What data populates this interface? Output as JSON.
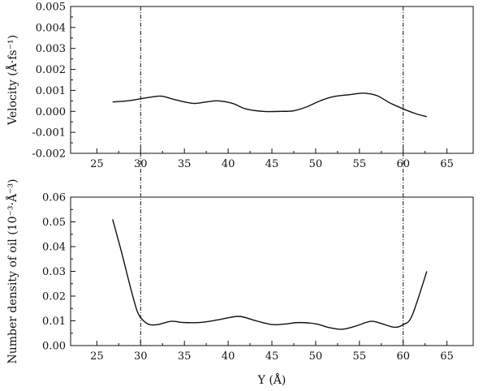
{
  "chart_data": [
    {
      "type": "line",
      "title": "",
      "xlabel": "",
      "ylabel": "Velocity (Å·fs⁻¹)",
      "xlim": [
        22,
        68
      ],
      "ylim": [
        -0.002,
        0.005
      ],
      "xticks": [
        25,
        30,
        35,
        40,
        45,
        50,
        55,
        60,
        65
      ],
      "xtick_labels": [
        "25",
        "30",
        "35",
        "40",
        "45",
        "50",
        "55",
        "60",
        "65"
      ],
      "yticks": [
        -0.002,
        -0.001,
        0.0,
        0.001,
        0.002,
        0.003,
        0.004,
        0.005
      ],
      "ytick_labels": [
        "-0.002",
        "-0.001",
        "0.000",
        "0.001",
        "0.002",
        "0.003",
        "0.004",
        "0.005"
      ],
      "grid": false,
      "series": [
        {
          "x": [
            26.8,
            28.5,
            30,
            31.5,
            32.5,
            34,
            36,
            37.5,
            38.8,
            40.5,
            42,
            44,
            46,
            47.5,
            49,
            50.5,
            52,
            54,
            55.5,
            57,
            58.5,
            60,
            61.5,
            62.7
          ],
          "y": [
            0.00045,
            0.0005,
            0.0006,
            0.0007,
            0.00072,
            0.00055,
            0.00038,
            0.00045,
            0.0005,
            0.00038,
            0.00012,
            0.0,
            0.0,
            3e-05,
            0.00022,
            0.0005,
            0.0007,
            0.0008,
            0.00087,
            0.00075,
            0.0004,
            0.00012,
            -0.00012,
            -0.00025
          ]
        }
      ]
    },
    {
      "type": "line",
      "title": "",
      "xlabel": "Y (Å)",
      "ylabel": "Number density of oil (10⁻³·Å⁻³)",
      "xlim": [
        22,
        68
      ],
      "ylim": [
        0.0,
        0.06
      ],
      "xticks": [
        25,
        30,
        35,
        40,
        45,
        50,
        55,
        60,
        65
      ],
      "xtick_labels": [
        "25",
        "30",
        "35",
        "40",
        "45",
        "50",
        "55",
        "60",
        "65"
      ],
      "yticks": [
        0.0,
        0.01,
        0.02,
        0.03,
        0.04,
        0.05,
        0.06
      ],
      "ytick_labels": [
        "0.00",
        "0.01",
        "0.02",
        "0.03",
        "0.04",
        "0.05",
        "0.06"
      ],
      "grid": false,
      "series": [
        {
          "x": [
            26.8,
            27.8,
            28.8,
            29.6,
            30.2,
            31,
            32,
            33.5,
            35,
            37,
            39,
            41.2,
            43,
            45,
            46.5,
            48,
            50,
            51.5,
            53,
            54.5,
            56.3,
            57.5,
            59,
            60,
            61,
            62.7
          ],
          "y": [
            0.051,
            0.038,
            0.024,
            0.014,
            0.0105,
            0.0085,
            0.0085,
            0.0098,
            0.0093,
            0.0094,
            0.0105,
            0.0118,
            0.0102,
            0.0085,
            0.0087,
            0.0093,
            0.0088,
            0.0073,
            0.0066,
            0.0078,
            0.0098,
            0.0089,
            0.0074,
            0.0085,
            0.012,
            0.03
          ]
        }
      ]
    }
  ],
  "reference_lines": {
    "x_values": [
      30,
      60
    ],
    "style": "dash-dot",
    "spans": "both panels"
  }
}
